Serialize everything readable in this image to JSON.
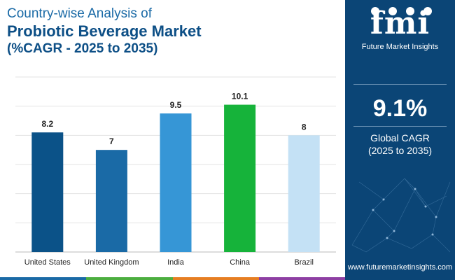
{
  "header": {
    "title_line1": "Country-wise Analysis of",
    "title_line2": "Probiotic Beverage Market",
    "title_line3": "(%CAGR - 2025 to 2035)"
  },
  "chart_data": {
    "type": "bar",
    "categories": [
      "United States",
      "United Kingdom",
      "India",
      "China",
      "Brazil"
    ],
    "values": [
      8.2,
      7,
      9.5,
      10.1,
      8
    ],
    "value_labels": [
      "8.2",
      "7",
      "9.5",
      "10.1",
      "8"
    ],
    "colors": [
      "#0b5288",
      "#1a6aa6",
      "#3696d6",
      "#16b33a",
      "#c4e1f5"
    ],
    "ylim": [
      0,
      12
    ],
    "grid": true,
    "title": "",
    "xlabel": "",
    "ylabel": ""
  },
  "panel": {
    "brand_mark": "fmi",
    "brand_name": "Future Market Insights",
    "cagr_value": "9.1%",
    "cagr_label_line1": "Global CAGR",
    "cagr_label_line2": "(2025 to 2035)",
    "website": "www.futuremarketinsights.com"
  },
  "colors": {
    "panel_bg": "#0b4576",
    "title_dark": "#0d4f86",
    "footer": [
      "#1a6aa6",
      "#4cae3f",
      "#e67e22",
      "#8e3fa3"
    ]
  }
}
